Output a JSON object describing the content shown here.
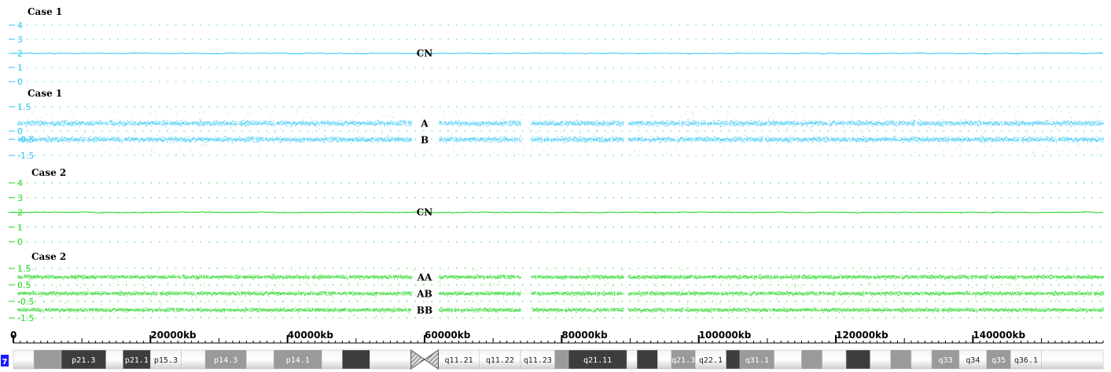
{
  "colors": {
    "case1": "#2ec4f2",
    "case2": "#1fd61f",
    "axis": "#000000",
    "gray_band": "#9a9a9a",
    "dark_band": "#3d3d3d",
    "chrom_badge": "#1a1aff"
  },
  "panels": [
    {
      "title": "Case 1",
      "type": "copy_number",
      "color_key": "case1",
      "ticks": [
        "4",
        "3",
        "2",
        "1",
        "0"
      ],
      "tick_values": [
        4,
        3,
        2,
        1,
        0
      ],
      "trace_label": "CN",
      "baseline": 2
    },
    {
      "title": "Case 1",
      "type": "allele",
      "color_key": "case1",
      "ticks": [
        "1.5",
        "0",
        "-0.5",
        "-1.5"
      ],
      "tick_values": [
        1.5,
        0,
        -0.5,
        -1.5
      ],
      "bands": [
        {
          "label": "A",
          "value": 0.5
        },
        {
          "label": "B",
          "value": -0.5
        }
      ]
    },
    {
      "title": "Case 2",
      "type": "copy_number",
      "color_key": "case2",
      "ticks": [
        "4",
        "3",
        "2",
        "1",
        "0"
      ],
      "tick_values": [
        4,
        3,
        2,
        1,
        0
      ],
      "trace_label": "CN",
      "baseline": 2
    },
    {
      "title": "Case 2",
      "type": "allele",
      "color_key": "case2",
      "ticks": [
        "1.5",
        "0.5",
        "-0.5",
        "-1.5"
      ],
      "tick_values": [
        1.5,
        0.5,
        -0.5,
        -1.5
      ],
      "bands": [
        {
          "label": "AA",
          "value": 1
        },
        {
          "label": "AB",
          "value": 0
        },
        {
          "label": "BB",
          "value": -1
        }
      ]
    }
  ],
  "chart_data": {
    "type": "scatter",
    "title": "",
    "xlabel": "",
    "x_unit": "kb",
    "xlim": [
      0,
      159000
    ],
    "x_ticks": [
      0,
      20000,
      40000,
      60000,
      80000,
      100000,
      120000,
      140000
    ],
    "x_tick_labels": [
      "0",
      "20000kb",
      "40000kb",
      "60000kb",
      "80000kb",
      "100000kb",
      "120000kb",
      "140000kb"
    ],
    "data_gaps_kb": [
      [
        58000,
        62000
      ],
      [
        74000,
        75500
      ],
      [
        89000,
        89600
      ]
    ],
    "series": [
      {
        "name": "CN",
        "panel": 0,
        "kind": "line",
        "y_level": 2,
        "ylim": [
          0,
          4
        ]
      },
      {
        "name": "A",
        "panel": 1,
        "kind": "scatter",
        "y_level": 0.5,
        "ylim": [
          -1.5,
          1.5
        ]
      },
      {
        "name": "B",
        "panel": 1,
        "kind": "scatter",
        "y_level": -0.5,
        "ylim": [
          -1.5,
          1.5
        ]
      },
      {
        "name": "CN",
        "panel": 2,
        "kind": "line",
        "y_level": 2,
        "ylim": [
          0,
          4
        ]
      },
      {
        "name": "AA",
        "panel": 3,
        "kind": "scatter",
        "y_level": 1,
        "ylim": [
          -1.5,
          1.5
        ]
      },
      {
        "name": "AB",
        "panel": 3,
        "kind": "scatter",
        "y_level": 0,
        "ylim": [
          -1.5,
          1.5
        ]
      },
      {
        "name": "BB",
        "panel": 3,
        "kind": "scatter",
        "y_level": -1,
        "ylim": [
          -1.5,
          1.5
        ]
      }
    ]
  },
  "ideogram": {
    "chromosome": "7",
    "centromere_kb": [
      58000,
      62000
    ],
    "bands": [
      {
        "start": 0,
        "end": 3000,
        "stain": "light",
        "label": ""
      },
      {
        "start": 3000,
        "end": 7000,
        "stain": "mid",
        "label": ""
      },
      {
        "start": 7000,
        "end": 13500,
        "stain": "dark",
        "label": "p21.3"
      },
      {
        "start": 13500,
        "end": 16000,
        "stain": "light",
        "label": ""
      },
      {
        "start": 16000,
        "end": 20000,
        "stain": "dark",
        "label": "p21.1"
      },
      {
        "start": 20000,
        "end": 24500,
        "stain": "light",
        "label": "p15.3"
      },
      {
        "start": 24500,
        "end": 28000,
        "stain": "light",
        "label": ""
      },
      {
        "start": 28000,
        "end": 34000,
        "stain": "mid",
        "label": "p14.3"
      },
      {
        "start": 34000,
        "end": 38000,
        "stain": "light",
        "label": ""
      },
      {
        "start": 38000,
        "end": 45000,
        "stain": "mid",
        "label": "p14.1"
      },
      {
        "start": 45000,
        "end": 48000,
        "stain": "light",
        "label": ""
      },
      {
        "start": 48000,
        "end": 52000,
        "stain": "dark",
        "label": ""
      },
      {
        "start": 52000,
        "end": 58000,
        "stain": "light",
        "label": ""
      },
      {
        "start": 62000,
        "end": 68000,
        "stain": "light",
        "label": "q11.21"
      },
      {
        "start": 68000,
        "end": 74000,
        "stain": "light",
        "label": "q11.22"
      },
      {
        "start": 74000,
        "end": 79000,
        "stain": "light",
        "label": "q11.23"
      },
      {
        "start": 79000,
        "end": 81000,
        "stain": "mid",
        "label": ""
      },
      {
        "start": 81000,
        "end": 89500,
        "stain": "dark",
        "label": "q21.11"
      },
      {
        "start": 89500,
        "end": 91000,
        "stain": "light",
        "label": ""
      },
      {
        "start": 91000,
        "end": 94000,
        "stain": "dark",
        "label": ""
      },
      {
        "start": 94000,
        "end": 96000,
        "stain": "light",
        "label": ""
      },
      {
        "start": 96000,
        "end": 99500,
        "stain": "mid",
        "label": "q21.3"
      },
      {
        "start": 99500,
        "end": 104000,
        "stain": "light",
        "label": "q22.1"
      },
      {
        "start": 104000,
        "end": 106000,
        "stain": "dark",
        "label": ""
      },
      {
        "start": 106000,
        "end": 111000,
        "stain": "mid",
        "label": "q31.1"
      },
      {
        "start": 111000,
        "end": 115000,
        "stain": "light",
        "label": ""
      },
      {
        "start": 115000,
        "end": 118000,
        "stain": "mid",
        "label": ""
      },
      {
        "start": 118000,
        "end": 121500,
        "stain": "light",
        "label": ""
      },
      {
        "start": 121500,
        "end": 125000,
        "stain": "dark",
        "label": ""
      },
      {
        "start": 125000,
        "end": 128000,
        "stain": "light",
        "label": ""
      },
      {
        "start": 128000,
        "end": 131000,
        "stain": "mid",
        "label": ""
      },
      {
        "start": 131000,
        "end": 134000,
        "stain": "light",
        "label": ""
      },
      {
        "start": 134000,
        "end": 138000,
        "stain": "mid",
        "label": "q33"
      },
      {
        "start": 138000,
        "end": 142000,
        "stain": "light",
        "label": "q34"
      },
      {
        "start": 142000,
        "end": 145500,
        "stain": "mid",
        "label": "q35"
      },
      {
        "start": 145500,
        "end": 150000,
        "stain": "light",
        "label": "q36.1"
      },
      {
        "start": 150000,
        "end": 159000,
        "stain": "light",
        "label": ""
      }
    ]
  }
}
